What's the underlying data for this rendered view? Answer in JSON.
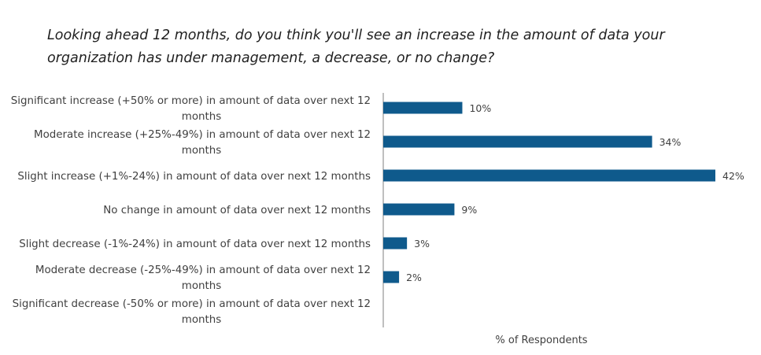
{
  "chart_data": {
    "type": "bar",
    "orientation": "horizontal",
    "title": "Looking ahead 12 months, do you think you'll see an increase in the amount of data your organization has under management, a decrease, or no change?",
    "categories": [
      [
        "Significant increase (+50% or more) in amount of data over next 12",
        "months"
      ],
      [
        "Moderate increase (+25%-49%) in amount of data over next 12",
        "months"
      ],
      [
        "Slight increase (+1%-24%) in amount of data over next 12 months"
      ],
      [
        "No change in amount of data over next 12 months"
      ],
      [
        "Slight decrease (-1%-24%) in amount of data over next 12 months"
      ],
      [
        "Moderate decrease (-25%-49%) in amount of data over next 12",
        "months"
      ],
      [
        "Significant decrease (-50% or more) in amount of data over next 12",
        "months"
      ]
    ],
    "values": [
      10,
      34,
      42,
      9,
      3,
      2,
      0
    ],
    "value_labels": [
      "10%",
      "34%",
      "42%",
      "9%",
      "3%",
      "2%",
      ""
    ],
    "xlabel": "% of Respondents",
    "ylabel": "",
    "xlim": [
      0,
      42
    ],
    "grid": false,
    "legend": "none",
    "bar_color": "#0f5a8c"
  }
}
